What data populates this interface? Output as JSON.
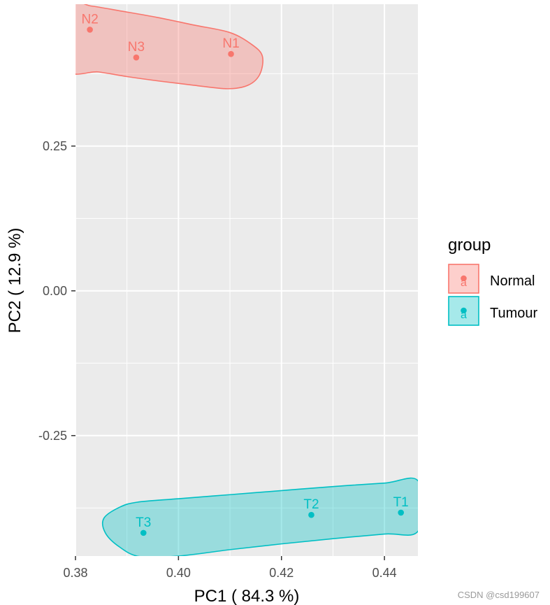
{
  "chart_data": {
    "type": "scatter",
    "title": "",
    "xlabel": "PC1 ( 84.3 %)",
    "ylabel": "PC2 ( 12.9 %)",
    "xlim": [
      0.38,
      0.4465
    ],
    "ylim": [
      -0.458,
      0.495
    ],
    "x_ticks": [
      0.38,
      0.4,
      0.42,
      0.44
    ],
    "x_tick_labels": [
      "0.38",
      "0.40",
      "0.42",
      "0.44"
    ],
    "y_ticks": [
      0.25,
      0.0,
      -0.25
    ],
    "y_tick_labels": [
      "0.25",
      "0.00",
      "-0.25"
    ],
    "grid": true,
    "legend": {
      "title": "group",
      "position": "right",
      "key_glyph_text": "a"
    },
    "series": [
      {
        "name": "Normal",
        "color": "#F8766D",
        "points": [
          {
            "label": "N1",
            "x": 0.4102,
            "y": 0.409
          },
          {
            "label": "N2",
            "x": 0.3828,
            "y": 0.451
          },
          {
            "label": "N3",
            "x": 0.3918,
            "y": 0.403
          }
        ],
        "ellipse_outline": [
          [
            0.3782,
            0.384
          ],
          [
            0.3845,
            0.378
          ],
          [
            0.39,
            0.37
          ],
          [
            0.3965,
            0.362
          ],
          [
            0.403,
            0.355
          ],
          [
            0.4095,
            0.349
          ],
          [
            0.4135,
            0.355
          ],
          [
            0.4158,
            0.374
          ],
          [
            0.4163,
            0.405
          ],
          [
            0.4143,
            0.425
          ],
          [
            0.41,
            0.446
          ],
          [
            0.403,
            0.459
          ],
          [
            0.396,
            0.472
          ],
          [
            0.389,
            0.483
          ],
          [
            0.383,
            0.492
          ],
          [
            0.378,
            0.496
          ]
        ]
      },
      {
        "name": "Tumour",
        "color": "#00BFC4",
        "points": [
          {
            "label": "T1",
            "x": 0.4432,
            "y": -0.383
          },
          {
            "label": "T2",
            "x": 0.4258,
            "y": -0.387
          },
          {
            "label": "T3",
            "x": 0.3932,
            "y": -0.418
          }
        ],
        "ellipse_outline": [
          [
            0.4466,
            -0.329
          ],
          [
            0.44,
            -0.332
          ],
          [
            0.43,
            -0.338
          ],
          [
            0.42,
            -0.345
          ],
          [
            0.41,
            -0.352
          ],
          [
            0.4,
            -0.359
          ],
          [
            0.392,
            -0.365
          ],
          [
            0.3885,
            -0.374
          ],
          [
            0.3855,
            -0.393
          ],
          [
            0.3858,
            -0.418
          ],
          [
            0.3885,
            -0.442
          ],
          [
            0.3925,
            -0.459
          ],
          [
            0.4,
            -0.458
          ],
          [
            0.41,
            -0.447
          ],
          [
            0.42,
            -0.437
          ],
          [
            0.43,
            -0.428
          ],
          [
            0.44,
            -0.42
          ],
          [
            0.4466,
            -0.414
          ]
        ]
      }
    ]
  },
  "watermark": "CSDN @csd199607"
}
